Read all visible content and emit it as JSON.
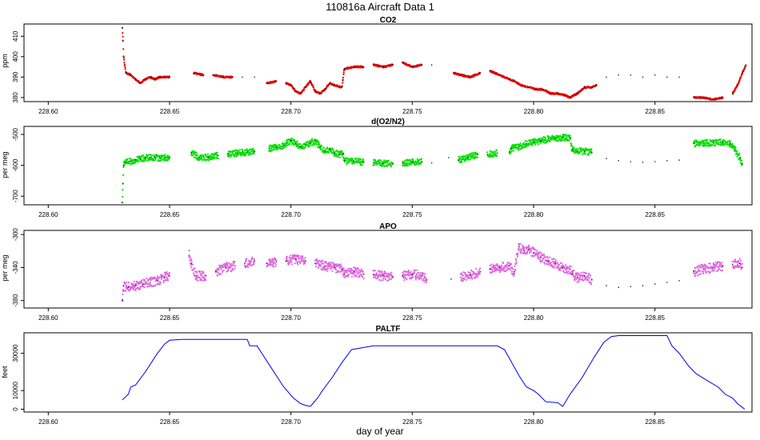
{
  "figure": {
    "title": "110816a   Aircraft Data 1",
    "xlabel": "day of year"
  },
  "chart_data": [
    {
      "type": "scatter",
      "title": "CO2",
      "ylabel": "ppm",
      "color": "#e00000",
      "xlim": [
        228.59,
        228.89
      ],
      "ylim": [
        378,
        416
      ],
      "xticks": [
        228.6,
        228.65,
        228.7,
        228.75,
        228.8,
        228.85
      ],
      "xtick_labels": [
        "228.60",
        "228.65",
        "228.70",
        "228.75",
        "228.80",
        "228.85"
      ],
      "yticks": [
        380,
        390,
        400,
        410
      ],
      "ytick_labels": [
        "380",
        "390",
        "400",
        "410"
      ],
      "series": [
        {
          "x": [
            228.6305,
            228.6308,
            228.631,
            228.632,
            228.634,
            228.636,
            228.638,
            228.64,
            228.642,
            228.644,
            228.646,
            228.648,
            228.65,
            228.66,
            228.664,
            228.668,
            228.672,
            228.676,
            228.68,
            228.685,
            228.69,
            228.694,
            228.698,
            228.7,
            228.702,
            228.704,
            228.706,
            228.708,
            228.71,
            228.712,
            228.714,
            228.716,
            228.718,
            228.721,
            228.722,
            228.726,
            228.73,
            228.734,
            228.738,
            228.742,
            228.746,
            228.75,
            228.754,
            228.758,
            228.767,
            228.77,
            228.774,
            228.778,
            228.782,
            228.786,
            228.79,
            228.792,
            228.795,
            228.798,
            228.801,
            228.804,
            228.807,
            228.81,
            228.813,
            228.815,
            228.818,
            228.821,
            228.824,
            228.826,
            228.83,
            228.835,
            228.84,
            228.845,
            228.85,
            228.855,
            228.86,
            228.866,
            228.87,
            228.874,
            228.878,
            228.882,
            228.884,
            228.886,
            228.8875
          ],
          "y": [
            414,
            408,
            400,
            392,
            391,
            389,
            387,
            389,
            390,
            389,
            390,
            390,
            390,
            392,
            391,
            391,
            390,
            390,
            390,
            390,
            387,
            388,
            387,
            386,
            383,
            382,
            385,
            388,
            383,
            382,
            384,
            387,
            386,
            385,
            394,
            395,
            395,
            396,
            395,
            396,
            397,
            395,
            396,
            396,
            392,
            391,
            390,
            392,
            393,
            391,
            389,
            388,
            386,
            385,
            384,
            384,
            382,
            382,
            381,
            380,
            382,
            385,
            385,
            386,
            390,
            391,
            391,
            390,
            391,
            390,
            390,
            380,
            380,
            379,
            380,
            382,
            386,
            392,
            396
          ]
        }
      ]
    },
    {
      "type": "scatter",
      "title": "d(O2/N2)",
      "ylabel": "per meg",
      "color": "#00e000",
      "xlim": [
        228.59,
        228.89
      ],
      "ylim": [
        -728,
        -474
      ],
      "xticks": [
        228.6,
        228.65,
        228.7,
        228.75,
        228.8,
        228.85
      ],
      "xtick_labels": [
        "228.60",
        "228.65",
        "228.70",
        "228.75",
        "228.80",
        "228.85"
      ],
      "yticks": [
        -700,
        -600,
        -500
      ],
      "ytick_labels": [
        "-700",
        "-600",
        "-500"
      ],
      "series": [
        {
          "x": [
            228.6305,
            228.6308,
            228.631,
            228.632,
            228.634,
            228.636,
            228.638,
            228.64,
            228.642,
            228.644,
            228.646,
            228.648,
            228.65,
            228.659,
            228.662,
            228.666,
            228.67,
            228.674,
            228.678,
            228.682,
            228.685,
            228.691,
            228.694,
            228.697,
            228.7,
            228.702,
            228.704,
            228.706,
            228.708,
            228.71,
            228.712,
            228.714,
            228.716,
            228.718,
            228.72,
            228.7215,
            228.722,
            228.726,
            228.73,
            228.734,
            228.738,
            228.742,
            228.746,
            228.75,
            228.754,
            228.758,
            228.765,
            228.769,
            228.773,
            228.777,
            228.781,
            228.785,
            228.79,
            228.791,
            228.794,
            228.797,
            228.8,
            228.803,
            228.806,
            228.809,
            228.812,
            228.815,
            228.816,
            228.818,
            228.821,
            228.824,
            228.83,
            228.835,
            228.84,
            228.845,
            228.85,
            228.855,
            228.86,
            228.866,
            228.87,
            228.874,
            228.878,
            228.881,
            228.883,
            228.885,
            228.886
          ],
          "y": [
            -720,
            -660,
            -600,
            -592,
            -587,
            -582,
            -580,
            -576,
            -574,
            -575,
            -576,
            -575,
            -576,
            -558,
            -575,
            -574,
            -568,
            -563,
            -560,
            -557,
            -556,
            -545,
            -542,
            -535,
            -520,
            -530,
            -540,
            -535,
            -528,
            -522,
            -540,
            -555,
            -548,
            -560,
            -565,
            -563,
            -585,
            -586,
            -590,
            -592,
            -594,
            -596,
            -593,
            -590,
            -588,
            -592,
            -575,
            -583,
            -575,
            -565,
            -565,
            -560,
            -557,
            -545,
            -540,
            -530,
            -525,
            -520,
            -515,
            -512,
            -510,
            -512,
            -550,
            -553,
            -555,
            -557,
            -578,
            -585,
            -588,
            -590,
            -588,
            -585,
            -583,
            -530,
            -528,
            -527,
            -525,
            -530,
            -550,
            -575,
            -595
          ]
        }
      ]
    },
    {
      "type": "scatter",
      "title": "APO",
      "ylabel": "per meg",
      "color": "#e066e0",
      "xlim": [
        228.59,
        228.89
      ],
      "ylim": [
        -389,
        -295
      ],
      "xticks": [
        228.6,
        228.65,
        228.7,
        228.75,
        228.8,
        228.85
      ],
      "xtick_labels": [
        "228.60",
        "228.65",
        "228.70",
        "228.75",
        "228.80",
        "228.85"
      ],
      "yticks": [
        -380,
        -340,
        -300
      ],
      "ytick_labels": [
        "-380",
        "-340",
        "-300"
      ],
      "series": [
        {
          "x": [
            228.6305,
            228.631,
            228.633,
            228.636,
            228.639,
            228.642,
            228.645,
            228.648,
            228.65,
            228.658,
            228.659,
            228.661,
            228.665,
            228.669,
            228.673,
            228.677,
            228.681,
            228.685,
            228.69,
            228.694,
            228.698,
            228.702,
            228.706,
            228.71,
            228.714,
            228.718,
            228.721,
            228.722,
            228.726,
            228.73,
            228.734,
            228.738,
            228.742,
            228.746,
            228.75,
            228.754,
            228.756,
            228.766,
            228.77,
            228.774,
            228.778,
            228.782,
            228.786,
            228.79,
            228.792,
            228.794,
            228.796,
            228.798,
            228.8,
            228.803,
            228.806,
            228.809,
            228.812,
            228.815,
            228.816,
            228.818,
            228.821,
            228.824,
            228.83,
            228.835,
            228.84,
            228.845,
            228.85,
            228.855,
            228.86,
            228.866,
            228.87,
            228.874,
            228.878,
            228.882,
            228.885,
            228.886
          ],
          "y": [
            -380,
            -362,
            -364,
            -362,
            -360,
            -358,
            -356,
            -352,
            -350,
            -325,
            -335,
            -350,
            -350,
            -345,
            -340,
            -338,
            -335,
            -332,
            -335,
            -333,
            -332,
            -330,
            -332,
            -335,
            -338,
            -340,
            -342,
            -348,
            -345,
            -348,
            -349,
            -350,
            -352,
            -350,
            -348,
            -350,
            -355,
            -354,
            -352,
            -349,
            -345,
            -342,
            -340,
            -338,
            -345,
            -315,
            -320,
            -318,
            -322,
            -328,
            -332,
            -335,
            -340,
            -342,
            -348,
            -352,
            -350,
            -355,
            -362,
            -364,
            -363,
            -362,
            -360,
            -358,
            -356,
            -345,
            -342,
            -340,
            -338,
            -336,
            -335,
            -340
          ]
        }
      ]
    },
    {
      "type": "line",
      "title": "PALTF",
      "ylabel": "feet",
      "color": "#0000ee",
      "xlim": [
        228.59,
        228.89
      ],
      "ylim": [
        -1500,
        41000
      ],
      "xticks": [
        228.6,
        228.65,
        228.7,
        228.75,
        228.8,
        228.85
      ],
      "xtick_labels": [
        "228.60",
        "228.65",
        "228.70",
        "228.75",
        "228.80",
        "228.85"
      ],
      "yticks": [
        0,
        10000,
        30000
      ],
      "ytick_labels": [
        "0",
        "10000",
        "30000"
      ],
      "series": [
        {
          "x": [
            228.6305,
            228.633,
            228.634,
            228.636,
            228.64,
            228.645,
            228.648,
            228.65,
            228.655,
            228.665,
            228.675,
            228.682,
            228.683,
            228.686,
            228.688,
            228.692,
            228.697,
            228.701,
            228.704,
            228.706,
            228.708,
            228.709,
            228.711,
            228.713,
            228.717,
            228.721,
            228.725,
            228.734,
            228.745,
            228.76,
            228.77,
            228.777,
            228.785,
            228.788,
            228.791,
            228.794,
            228.797,
            228.8,
            228.802,
            228.805,
            228.81,
            228.812,
            228.815,
            228.82,
            228.825,
            228.829,
            228.832,
            228.835,
            228.845,
            228.855,
            228.857,
            228.86,
            228.864,
            228.867,
            228.872,
            228.876,
            228.879,
            228.882,
            228.884,
            228.886,
            228.887
          ],
          "y": [
            5000,
            8000,
            12000,
            13000,
            20000,
            30000,
            35000,
            37000,
            37500,
            37500,
            37500,
            37500,
            34000,
            34000,
            30000,
            22000,
            12000,
            6000,
            3000,
            2000,
            1500,
            3000,
            6000,
            10000,
            17000,
            25000,
            32000,
            34000,
            34000,
            34000,
            34000,
            34000,
            34000,
            32000,
            25000,
            18000,
            12000,
            10000,
            8000,
            4000,
            3500,
            1500,
            8000,
            17000,
            28000,
            36000,
            39000,
            39500,
            39500,
            39500,
            34000,
            30000,
            23000,
            19000,
            15000,
            12000,
            8000,
            6000,
            3000,
            1000,
            0
          ]
        }
      ]
    }
  ]
}
